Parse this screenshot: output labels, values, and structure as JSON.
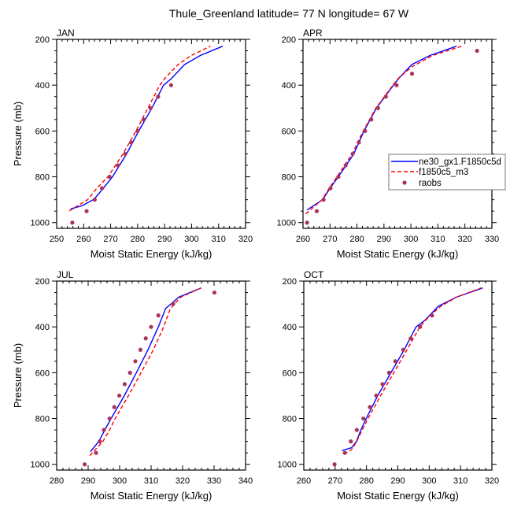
{
  "chart_data": {
    "title": "Thule_Greenland  latitude= 77 N longitude= 67 W",
    "legend": {
      "placement": "inside APR panel, right",
      "entries": [
        {
          "name": "ne30_gx1.F1850c5d",
          "style": "solid",
          "color": "#0000ff"
        },
        {
          "name": "f1850c5_m3",
          "style": "dashed",
          "color": "#ff0000"
        },
        {
          "name": "raobs",
          "style": "marker",
          "color": "#a8335e"
        }
      ]
    },
    "panels": [
      {
        "type": "line",
        "title": "JAN",
        "xlabel": "Moist Static Energy (kJ/kg)",
        "ylabel": "Pressure (mb)",
        "xlim": [
          250,
          320
        ],
        "ylim": [
          200,
          1025
        ],
        "xticks": [
          250,
          260,
          270,
          280,
          290,
          300,
          310,
          320
        ],
        "yticks": [
          200,
          400,
          600,
          800,
          1000
        ],
        "series": [
          {
            "name": "ne30_gx1.F1850c5d",
            "x": [
              255.2,
              259.5,
              263.9,
              267.3,
              270.7,
              275.9,
              280.4,
              285.3,
              289.6,
              292.6,
              297.4,
              303.3,
              311.5
            ],
            "y": [
              940,
              926,
              897,
              850,
              800,
              700,
              600,
              500,
              400,
              370,
              310,
              270,
              230
            ]
          },
          {
            "name": "f1850c5_m3",
            "x": [
              254.7,
              261.5,
              264.9,
              269.0,
              274.6,
              279.4,
              283.8,
              288.2,
              290.1,
              295.0,
              299.9,
              307.0
            ],
            "y": [
              949,
              900,
              850,
              800,
              700,
              600,
              500,
              400,
              370,
              310,
              270,
              230
            ]
          },
          {
            "name": "raobs",
            "x": [
              255.8,
              261.1,
              264.1,
              266.8,
              269.6,
              272.7,
              275.4,
              277.6,
              280.0,
              282.2,
              284.8,
              287.6,
              292.4
            ],
            "y": [
              1000,
              950,
              900,
              850,
              800,
              750,
              700,
              650,
              600,
              550,
              500,
              450,
              400
            ]
          }
        ]
      },
      {
        "type": "line",
        "title": "APR",
        "xlabel": "Moist Static Energy (kJ/kg)",
        "ylabel": "",
        "xlim": [
          260,
          330
        ],
        "ylim": [
          200,
          1025
        ],
        "xticks": [
          260,
          270,
          280,
          290,
          300,
          310,
          320,
          330
        ],
        "yticks": [
          200,
          400,
          600,
          800,
          1000
        ],
        "series": [
          {
            "name": "ne30_gx1.F1850c5d",
            "x": [
              261.5,
              267.3,
              270.0,
              273.1,
              278.8,
              282.6,
              287.2,
              293.5,
              295.5,
              300.3,
              307.1,
              316.9
            ],
            "y": [
              945,
              900,
              850,
              800,
              700,
              600,
              500,
              400,
              370,
              310,
              270,
              230
            ]
          },
          {
            "name": "f1850c5_m3",
            "x": [
              261.0,
              267.1,
              269.7,
              272.6,
              278.2,
              282.3,
              287.0,
              293.3,
              295.3,
              300.3,
              308.1,
              318.8
            ],
            "y": [
              962,
              900,
              850,
              800,
              700,
              600,
              500,
              400,
              370,
              320,
              270,
              230
            ]
          },
          {
            "name": "raobs",
            "x": [
              261.5,
              265.1,
              267.6,
              270.2,
              273.1,
              275.8,
              278.4,
              280.7,
              283.0,
              285.3,
              287.8,
              290.7,
              294.7,
              300.4,
              324.5
            ],
            "y": [
              1000,
              950,
              900,
              850,
              800,
              750,
              700,
              650,
              600,
              550,
              500,
              450,
              400,
              350,
              250
            ]
          }
        ]
      },
      {
        "type": "line",
        "title": "JUL",
        "xlabel": "Moist Static Energy (kJ/kg)",
        "ylabel": "Pressure (mb)",
        "xlim": [
          280,
          340
        ],
        "ylim": [
          200,
          1025
        ],
        "xticks": [
          280,
          290,
          300,
          310,
          320,
          330,
          340
        ],
        "yticks": [
          200,
          400,
          600,
          800,
          1000
        ],
        "series": [
          {
            "name": "ne30_gx1.F1850c5d",
            "x": [
              290.7,
              293.4,
              295.3,
              297.3,
              301.5,
              305.3,
              309.0,
              312.3,
              314.6,
              318.8,
              325.9
            ],
            "y": [
              945,
              900,
              850,
              800,
              700,
              600,
              500,
              400,
              320,
              270,
              230
            ]
          },
          {
            "name": "f1850c5_m3",
            "x": [
              290.5,
              294.7,
              296.8,
              298.6,
              302.8,
              306.8,
              310.7,
              314.0,
              316.1,
              319.4,
              325.9
            ],
            "y": [
              962,
              900,
              850,
              800,
              700,
              600,
              500,
              400,
              320,
              270,
              230
            ]
          },
          {
            "name": "raobs",
            "x": [
              288.9,
              292.5,
              293.7,
              295.0,
              296.8,
              298.3,
              299.9,
              301.6,
              303.3,
              305.0,
              306.6,
              308.3,
              310.0,
              312.3,
              317.0,
              330.1
            ],
            "y": [
              1000,
              950,
              900,
              850,
              800,
              750,
              700,
              650,
              600,
              550,
              500,
              450,
              400,
              350,
              300,
              250
            ]
          }
        ]
      },
      {
        "type": "line",
        "title": "OCT",
        "xlabel": "Moist Static Energy (kJ/kg)",
        "ylabel": "",
        "xlim": [
          260,
          320
        ],
        "ylim": [
          200,
          1025
        ],
        "xticks": [
          260,
          270,
          280,
          290,
          300,
          310,
          320
        ],
        "yticks": [
          200,
          400,
          600,
          800,
          1000
        ],
        "series": [
          {
            "name": "ne30_gx1.F1850c5d",
            "x": [
              272.2,
              275.3,
              276.8,
              278.2,
              279.9,
              283.6,
              287.8,
              292.0,
              295.8,
              298.7,
              302.9,
              308.7,
              317.1
            ],
            "y": [
              940,
              927,
              900,
              850,
              800,
              700,
              600,
              500,
              400,
              370,
              310,
              270,
              230
            ]
          },
          {
            "name": "f1850c5_m3",
            "x": [
              272.9,
              275.3,
              276.9,
              278.6,
              280.5,
              284.5,
              288.7,
              292.9,
              297.0,
              300.3,
              303.7,
              308.7,
              316.6
            ],
            "y": [
              957,
              935,
              900,
              850,
              800,
              700,
              600,
              500,
              400,
              350,
              310,
              270,
              230
            ]
          },
          {
            "name": "raobs",
            "x": [
              269.8,
              273.1,
              275.0,
              276.9,
              279.0,
              281.1,
              283.1,
              285.1,
              287.2,
              289.2,
              291.7,
              294.1,
              297.1,
              300.9
            ],
            "y": [
              1000,
              950,
              900,
              850,
              800,
              750,
              700,
              650,
              600,
              550,
              500,
              450,
              400,
              350
            ]
          }
        ]
      }
    ]
  }
}
